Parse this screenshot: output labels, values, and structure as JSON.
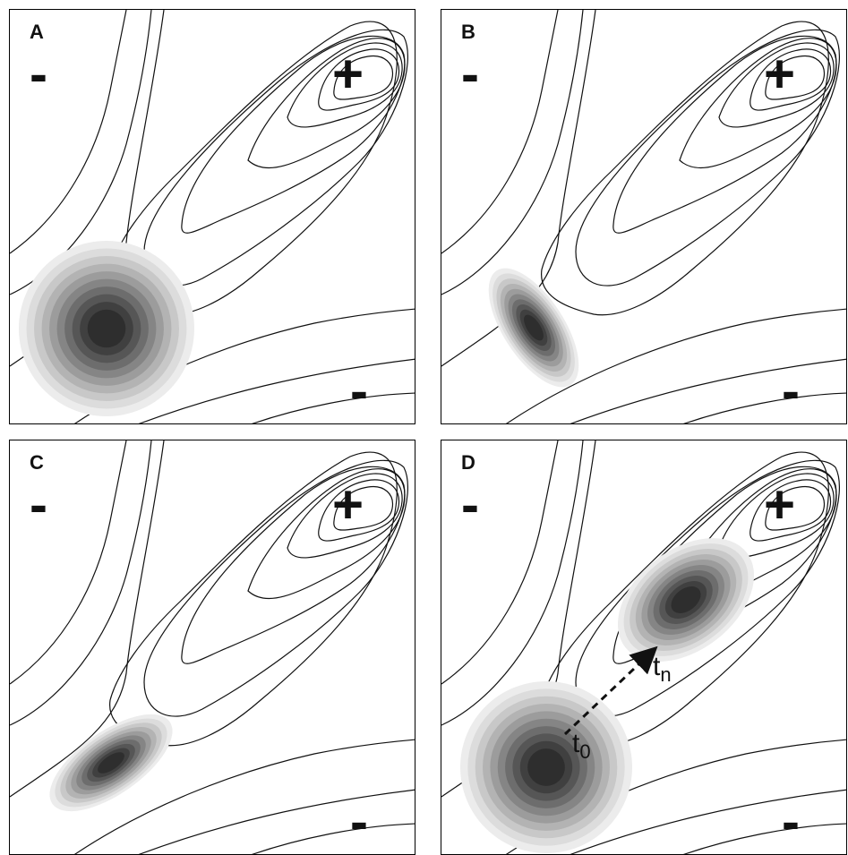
{
  "panels": [
    {
      "letter": "A",
      "minus_tl": "-",
      "plus": "+",
      "minus_br": "-"
    },
    {
      "letter": "B",
      "minus_tl": "-",
      "plus": "+",
      "minus_br": "-"
    },
    {
      "letter": "C",
      "minus_tl": "-",
      "plus": "+",
      "minus_br": "-"
    },
    {
      "letter": "D",
      "minus_tl": "-",
      "plus": "+",
      "minus_br": "-",
      "t0_base": "t",
      "t0_sub": "0",
      "tn_base": "t",
      "tn_sub": "n"
    }
  ],
  "colors": {
    "line": "#111111",
    "blob_dark": "#2e2e2e"
  }
}
